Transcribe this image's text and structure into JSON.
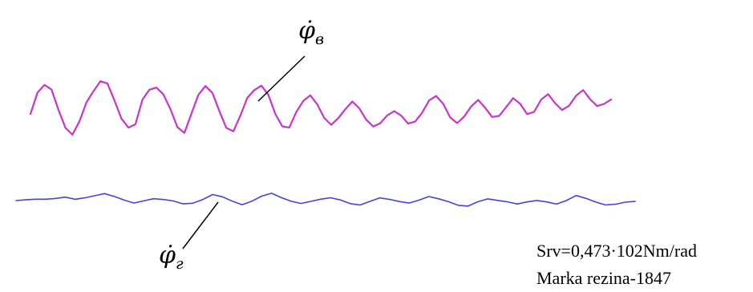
{
  "chart_data": {
    "type": "line",
    "title": "",
    "xlabel": "",
    "ylabel": "",
    "grid": false,
    "series": [
      {
        "name": "φ̇в",
        "symbol": "φ̇",
        "subscript": "в",
        "color": "#cc33cc",
        "y": [
          0.0,
          1.9,
          2.6,
          2.2,
          0.4,
          -1.2,
          -1.8,
          -0.6,
          1.1,
          2.1,
          3.0,
          2.8,
          1.3,
          -0.3,
          -1.1,
          -0.8,
          1.4,
          2.3,
          2.5,
          1.9,
          0.6,
          -1.0,
          -1.5,
          0.2,
          1.9,
          2.7,
          2.1,
          0.5,
          -1.0,
          -1.3,
          0.1,
          1.7,
          2.4,
          2.8,
          2.0,
          0.3,
          -0.8,
          -0.9,
          0.5,
          1.5,
          2.0,
          1.2,
          0.0,
          -0.6,
          0.0,
          0.8,
          1.5,
          0.9,
          -0.1,
          -0.7,
          -0.4,
          0.3,
          0.7,
          0.3,
          -0.4,
          -0.2,
          0.6,
          1.7,
          2.1,
          1.4,
          0.2,
          -0.3,
          0.3,
          1.2,
          1.8,
          1.1,
          0.3,
          0.4,
          1.2,
          2.0,
          1.5,
          0.6,
          0.8,
          1.9,
          2.4,
          1.6,
          1.0,
          1.4,
          2.3,
          2.8,
          2.0,
          1.4,
          1.6,
          2.0
        ]
      },
      {
        "name": "φ̇г",
        "symbol": "φ̇",
        "subscript": "г",
        "color": "#4444dd",
        "y": [
          0.0,
          0.1,
          0.2,
          0.2,
          0.3,
          0.5,
          0.2,
          0.4,
          0.7,
          1.0,
          0.6,
          0.1,
          -0.3,
          0.0,
          0.3,
          0.2,
          0.0,
          -0.4,
          -0.3,
          0.2,
          0.9,
          0.6,
          0.0,
          -0.5,
          0.0,
          0.7,
          1.1,
          0.5,
          0.0,
          -0.3,
          0.0,
          0.3,
          0.5,
          0.2,
          -0.3,
          -0.5,
          0.0,
          0.5,
          0.3,
          0.0,
          -0.2,
          0.2,
          0.7,
          0.4,
          0.0,
          -0.5,
          -0.6,
          0.0,
          0.4,
          0.2,
          0.0,
          -0.3,
          0.0,
          0.2,
          0.0,
          -0.3,
          0.2,
          0.9,
          0.5,
          0.0,
          -0.4,
          -0.3,
          0.0,
          0.1
        ]
      }
    ]
  },
  "annotations": {
    "line1": "Srv=0,473·102Nm/rad",
    "line2": "Marka rezina-1847"
  }
}
